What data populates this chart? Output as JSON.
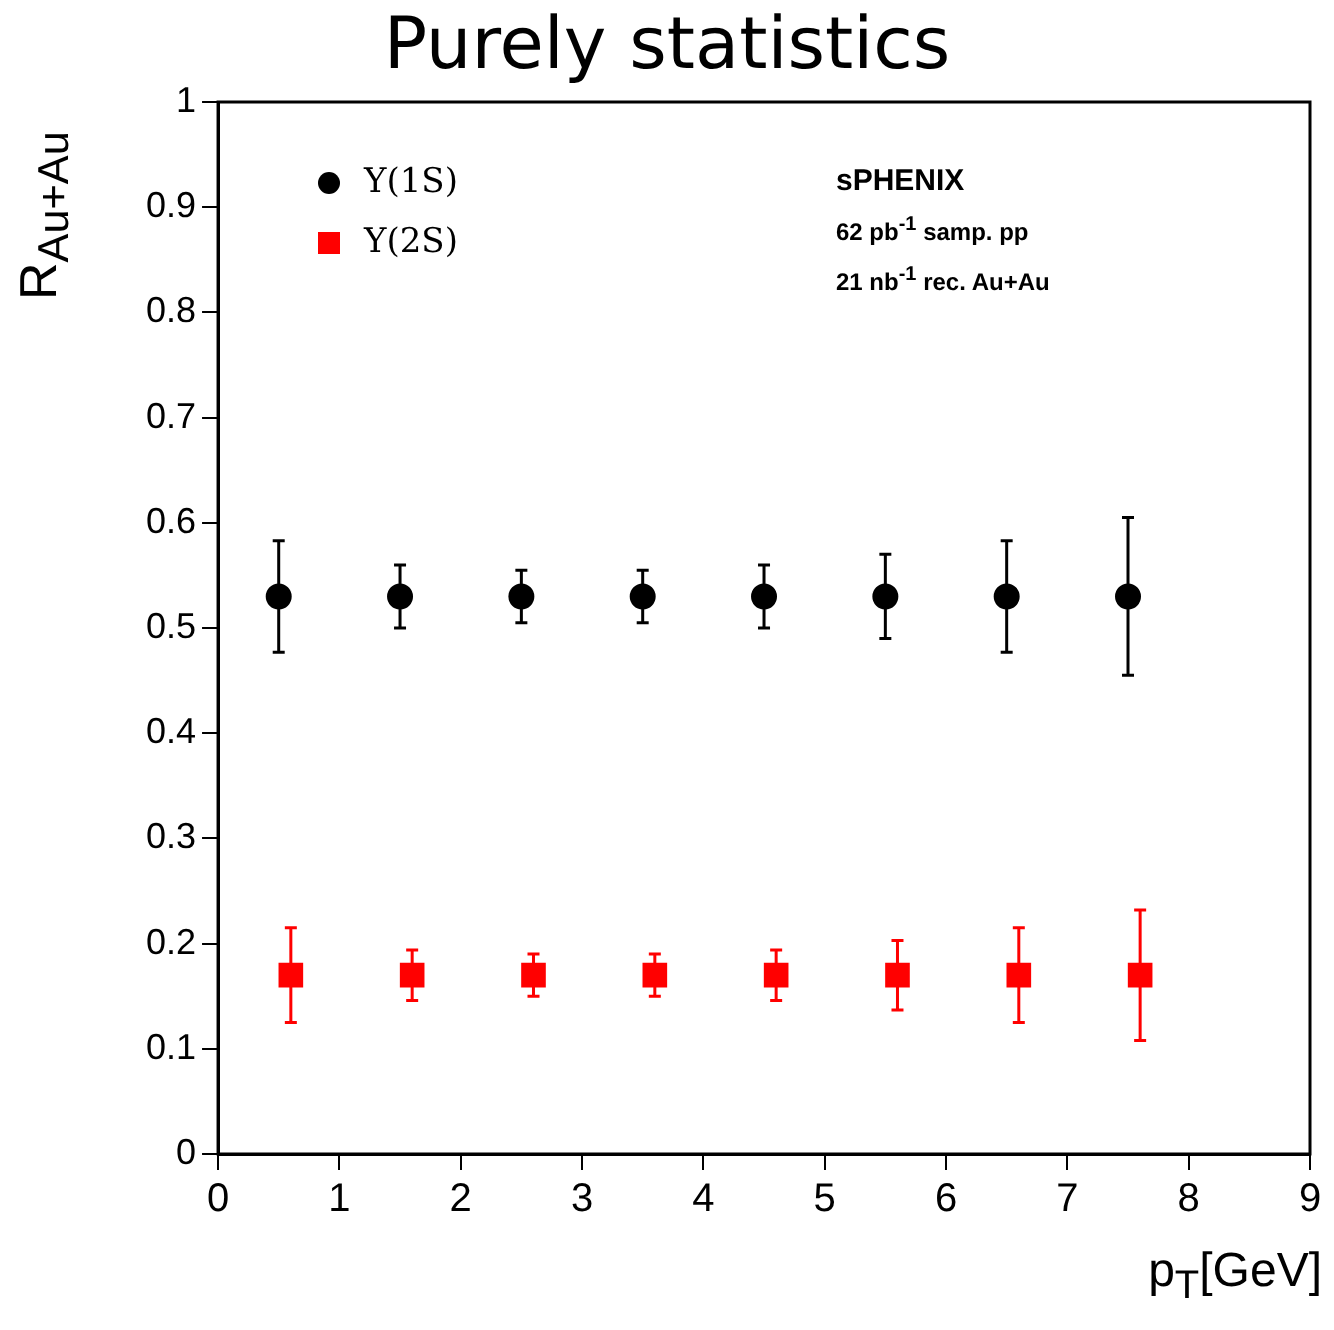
{
  "chart_data": {
    "type": "scatter",
    "title": "Purely statistics",
    "xlabel": "p$_{T}$[GeV]",
    "ylabel": "R$_{Au+Au}$",
    "xlim": [
      0,
      9
    ],
    "xticks": [
      0,
      1,
      2,
      3,
      4,
      5,
      6,
      7,
      8,
      9
    ],
    "ylim": [
      0,
      1
    ],
    "yticks": [
      0,
      0.1,
      0.2,
      0.3,
      0.4,
      0.5,
      0.6,
      0.7,
      0.8,
      0.9,
      1
    ],
    "grid": false,
    "legend": "top left",
    "annotations": [
      "sPHENIX",
      "62 pb$^{-1}$ samp. pp",
      "21 nb$^{-1}$ rec. Au+Au"
    ],
    "series": [
      {
        "name": "Υ(1S)",
        "color": "#000000",
        "marker": "circle",
        "x": [
          0.5,
          1.5,
          2.5,
          3.5,
          4.5,
          5.5,
          6.5,
          7.5
        ],
        "values": [
          0.53,
          0.53,
          0.53,
          0.53,
          0.53,
          0.53,
          0.53,
          0.53
        ],
        "errors": [
          0.053,
          0.03,
          0.025,
          0.025,
          0.03,
          0.04,
          0.053,
          0.075
        ]
      },
      {
        "name": "Υ(2S)",
        "color": "#ff0000",
        "marker": "square",
        "x": [
          0.6,
          1.6,
          2.6,
          3.6,
          4.6,
          5.6,
          6.6,
          7.6
        ],
        "values": [
          0.17,
          0.17,
          0.17,
          0.17,
          0.17,
          0.17,
          0.17,
          0.17
        ],
        "errors": [
          0.045,
          0.024,
          0.02,
          0.02,
          0.024,
          0.033,
          0.045,
          0.062
        ]
      }
    ]
  }
}
